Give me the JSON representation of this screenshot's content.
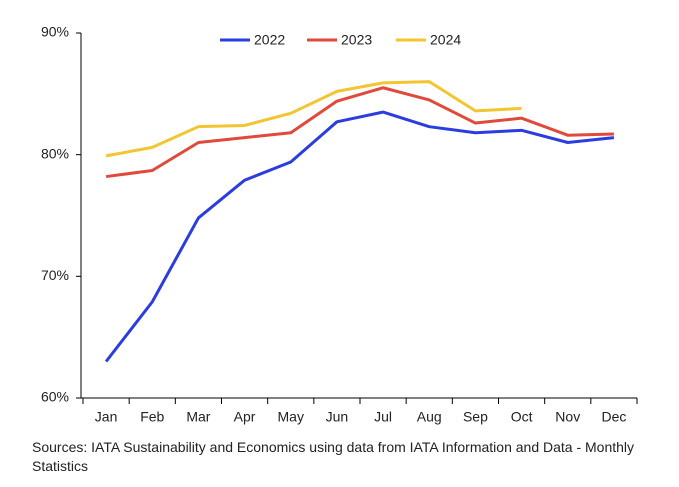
{
  "chart_data": {
    "type": "line",
    "categories": [
      "Jan",
      "Feb",
      "Mar",
      "Apr",
      "May",
      "Jun",
      "Jul",
      "Aug",
      "Sep",
      "Oct",
      "Nov",
      "Dec"
    ],
    "series": [
      {
        "name": "2022",
        "color": "#2b3de0",
        "values": [
          63.0,
          67.9,
          74.8,
          77.9,
          79.4,
          82.7,
          83.5,
          82.3,
          81.8,
          82.0,
          81.0,
          81.4
        ]
      },
      {
        "name": "2023",
        "color": "#e04a3b",
        "values": [
          78.2,
          78.7,
          81.0,
          81.4,
          81.8,
          84.4,
          85.5,
          84.5,
          82.6,
          83.0,
          81.6,
          81.7
        ]
      },
      {
        "name": "2024",
        "color": "#f2c531",
        "values": [
          79.9,
          80.6,
          82.3,
          82.4,
          83.4,
          85.2,
          85.9,
          86.0,
          83.6,
          83.8,
          null,
          null
        ]
      }
    ],
    "ylim": [
      60,
      90
    ],
    "yticks": [
      {
        "value": 60,
        "label": "60%"
      },
      {
        "value": 70,
        "label": "70%"
      },
      {
        "value": 80,
        "label": "80%"
      },
      {
        "value": 90,
        "label": "90%"
      }
    ],
    "legend": "top",
    "source": "Sources: IATA Sustainability and Economics using data from IATA Information and Data - Monthly Statistics"
  }
}
